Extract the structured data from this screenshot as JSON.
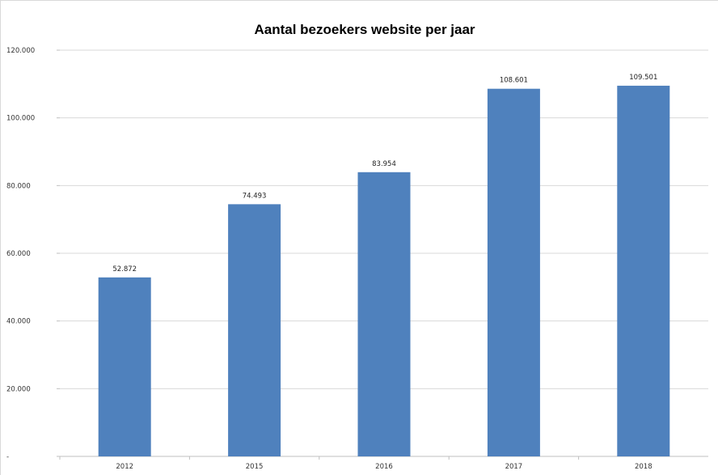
{
  "chart_data": {
    "type": "bar",
    "title": "Aantal bezoekers website per jaar",
    "xlabel": "",
    "ylabel": "",
    "categories": [
      "2012",
      "2015",
      "2016",
      "2017",
      "2018"
    ],
    "values": [
      52872,
      74493,
      83954,
      108601,
      109501
    ],
    "data_labels": [
      "52.872",
      "74.493",
      "83.954",
      "108.601",
      "109.501"
    ],
    "ylim": [
      0,
      120000
    ],
    "yticks": [
      0,
      20000,
      40000,
      60000,
      80000,
      100000,
      120000
    ],
    "ytick_labels": [
      "-",
      "20.000",
      "40.000",
      "60.000",
      "80.000",
      "100.000",
      "120.000"
    ],
    "grid": true,
    "legend": "none",
    "bar_color": "#4f81bd"
  }
}
